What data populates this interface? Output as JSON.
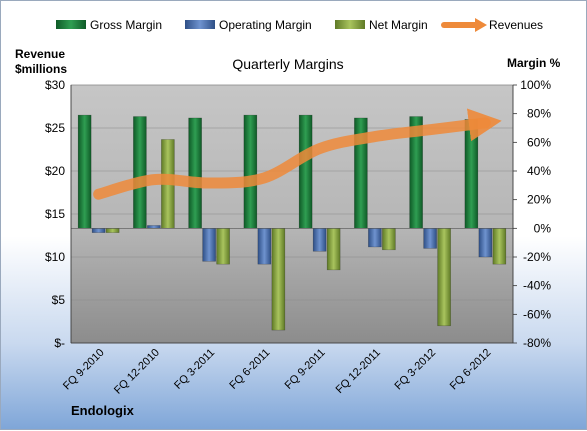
{
  "chart_data": {
    "type": "bar",
    "title": "Quarterly Margins",
    "company": "Endologix",
    "y_left_label_line1": "Revenue",
    "y_left_label_line2": "$millions",
    "y_right_label": "Margin %",
    "categories": [
      "FQ 9-2010",
      "FQ 12-2010",
      "FQ 3-2011",
      "FQ 6-2011",
      "FQ 9-2011",
      "FQ 12-2011",
      "FQ 3-2012",
      "FQ 6-2012"
    ],
    "left_ticks": [
      "$-",
      "$5",
      "$10",
      "$15",
      "$20",
      "$25",
      "$30"
    ],
    "right_ticks": [
      "-80%",
      "-60%",
      "-40%",
      "-20%",
      "0%",
      "20%",
      "40%",
      "60%",
      "80%",
      "100%"
    ],
    "ylim_left": [
      0,
      30
    ],
    "ylim_right": [
      -80,
      100
    ],
    "legend_position": "top",
    "series": [
      {
        "name": "Gross Margin",
        "kind": "bar",
        "axis": "right",
        "color": "#1f7a3a",
        "values": [
          79,
          78,
          77,
          79,
          79,
          77,
          78,
          76
        ]
      },
      {
        "name": "Operating Margin",
        "kind": "bar",
        "axis": "right",
        "color": "#4a6fae",
        "values": [
          -3,
          2,
          -23,
          -25,
          -16,
          -13,
          -14,
          -20
        ]
      },
      {
        "name": "Net Margin",
        "kind": "bar",
        "axis": "right",
        "color": "#8caa48",
        "values": [
          -3,
          62,
          -25,
          -71,
          -29,
          -15,
          -68,
          -25
        ]
      },
      {
        "name": "Revenues",
        "kind": "line",
        "axis": "left",
        "color": "#ee8a3a",
        "values": [
          17.3,
          19.0,
          18.6,
          19.2,
          22.6,
          24.0,
          24.8,
          25.6
        ]
      }
    ]
  }
}
